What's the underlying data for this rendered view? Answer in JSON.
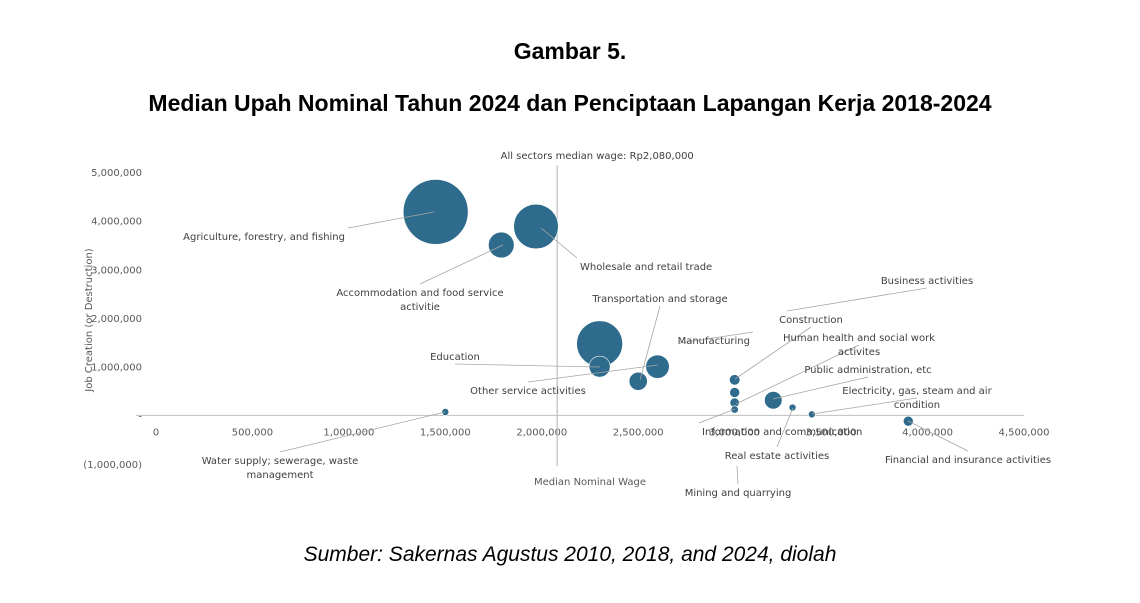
{
  "figure": {
    "number": "Gambar 5.",
    "title": "Median Upah Nominal Tahun 2024 dan Penciptaan Lapangan Kerja 2018-2024",
    "source": "Sumber: Sakernas Agustus 2010, 2018, and 2024, diolah"
  },
  "chart_data": {
    "type": "scatter",
    "bubble": true,
    "xlabel": "Median Nominal Wage",
    "ylabel": "Job Creation (or Destruction)",
    "xlim": [
      0,
      4500000
    ],
    "ylim": [
      -1000000,
      5000000
    ],
    "x_ticks": [
      "0",
      "500,000",
      "1,000,000",
      "1,500,000",
      "2,000,000",
      "2,500,000",
      "3,000,000",
      "3,500,000",
      "4,000,000",
      "4,500,000"
    ],
    "y_ticks": [
      "(1,000,000)",
      "-",
      "1,000,000",
      "2,000,000",
      "3,000,000",
      "4,000,000",
      "5,000,000"
    ],
    "reference_line": {
      "x": 2080000,
      "label": "All sectors median wage: Rp2,080,000"
    },
    "bubble_color": "#2e6b8c",
    "grid": false,
    "points": [
      {
        "label": "Agriculture, forestry, and fishing",
        "x": 1450000,
        "y": 4180000,
        "size": 38000000
      },
      {
        "label": "Wholesale and retail trade",
        "x": 1970000,
        "y": 3880000,
        "size": 18000000
      },
      {
        "label": "Accommodation and food service activitie",
        "x": 1790000,
        "y": 3500000,
        "size": 6000000
      },
      {
        "label": "Transportation and storage",
        "x": 2500000,
        "y": 700000,
        "size": 3000000
      },
      {
        "label": "Manufacturing",
        "x": 2300000,
        "y": 1470000,
        "size": 19000000
      },
      {
        "label": "Education",
        "x": 2300000,
        "y": 1000000,
        "size": 4000000
      },
      {
        "label": "Other service activities",
        "x": 2600000,
        "y": 1000000,
        "size": 5000000
      },
      {
        "label": "Water supply; sewerage, waste management",
        "x": 1500000,
        "y": 70000,
        "size": 250000
      },
      {
        "label": "Business activities",
        "x": 3000000,
        "y": 470000,
        "size": 900000
      },
      {
        "label": "Construction",
        "x": 3000000,
        "y": 730000,
        "size": 1000000
      },
      {
        "label": "Human health and social work activites",
        "x": 3000000,
        "y": 260000,
        "size": 800000
      },
      {
        "label": "Information and communication",
        "x": 3000000,
        "y": 120000,
        "size": 500000
      },
      {
        "label": "Public administration, etc",
        "x": 3200000,
        "y": 310000,
        "size": 2800000
      },
      {
        "label": "Real estate activities",
        "x": 3300000,
        "y": 160000,
        "size": 250000
      },
      {
        "label": "Electricity, gas, steam and air condition",
        "x": 3400000,
        "y": 20000,
        "size": 120000
      },
      {
        "label": "Financial and insurance activities",
        "x": 3900000,
        "y": -120000,
        "size": 900000
      },
      {
        "label": "Mining and quarrying",
        "x": 3000000,
        "y": 0,
        "size": 0
      }
    ]
  }
}
